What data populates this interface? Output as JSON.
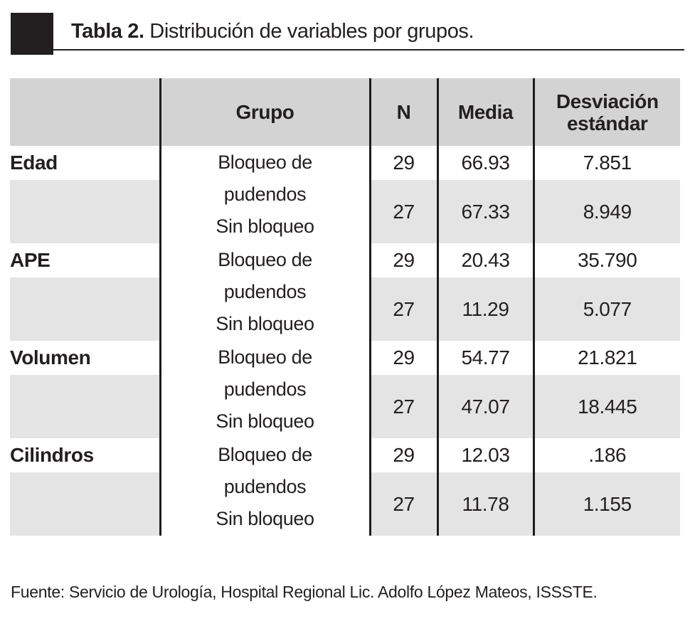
{
  "title": {
    "prefix": "Tabla 2.",
    "text": " Distribución de variables por grupos."
  },
  "table": {
    "headers": {
      "variable": "",
      "grupo": "Grupo",
      "n": "N",
      "media": "Media",
      "desviacion": "Desviación estándar"
    },
    "groups": [
      {
        "label": "Edad",
        "grupo_lines": [
          "Bloqueo de",
          "pudendos",
          "Sin bloqueo"
        ],
        "rows": [
          {
            "n": "29",
            "media": "66.93",
            "sd": "7.851"
          },
          {
            "n": "27",
            "media": "67.33",
            "sd": "8.949"
          }
        ]
      },
      {
        "label": "APE",
        "grupo_lines": [
          "Bloqueo de",
          "pudendos",
          "Sin bloqueo"
        ],
        "rows": [
          {
            "n": "29",
            "media": "20.43",
            "sd": "35.790"
          },
          {
            "n": "27",
            "media": "11.29",
            "sd": "5.077"
          }
        ]
      },
      {
        "label": "Volumen",
        "grupo_lines": [
          "Bloqueo de",
          "pudendos",
          "Sin bloqueo"
        ],
        "rows": [
          {
            "n": "29",
            "media": "54.77",
            "sd": "21.821"
          },
          {
            "n": "27",
            "media": "47.07",
            "sd": "18.445"
          }
        ]
      },
      {
        "label": "Cilindros",
        "grupo_lines": [
          "Bloqueo de",
          "pudendos",
          "Sin bloqueo"
        ],
        "rows": [
          {
            "n": "29",
            "media": "12.03",
            "sd": ".186"
          },
          {
            "n": "27",
            "media": "11.78",
            "sd": "1.155"
          }
        ]
      }
    ]
  },
  "footer": {
    "fuente": "Fuente: Servicio de Urología, Hospital Regional Lic. Adolfo López Mateos, ISSSTE."
  },
  "colors": {
    "ink": "#231f20",
    "header_bg": "#d3d3d3",
    "row_alt_bg": "#e4e4e4",
    "divider": "#1d1d1b"
  },
  "chart_data": {
    "type": "table",
    "title": "Tabla 2. Distribución de variables por grupos.",
    "columns": [
      "",
      "Grupo",
      "N",
      "Media",
      "Desviación estándar"
    ],
    "rows": [
      [
        "Edad",
        "Bloqueo de pudendos",
        "29",
        "66.93",
        "7.851"
      ],
      [
        "Edad",
        "Sin bloqueo",
        "27",
        "67.33",
        "8.949"
      ],
      [
        "APE",
        "Bloqueo de pudendos",
        "29",
        "20.43",
        "35.790"
      ],
      [
        "APE",
        "Sin bloqueo",
        "27",
        "11.29",
        "5.077"
      ],
      [
        "Volumen",
        "Bloqueo de pudendos",
        "29",
        "54.77",
        "21.821"
      ],
      [
        "Volumen",
        "Sin bloqueo",
        "27",
        "47.07",
        "18.445"
      ],
      [
        "Cilindros",
        "Bloqueo de pudendos",
        "29",
        "12.03",
        ".186"
      ],
      [
        "Cilindros",
        "Sin bloqueo",
        "27",
        "11.78",
        "1.155"
      ]
    ],
    "source": "Fuente: Servicio de Urología, Hospital Regional Lic. Adolfo López Mateos, ISSSTE."
  }
}
